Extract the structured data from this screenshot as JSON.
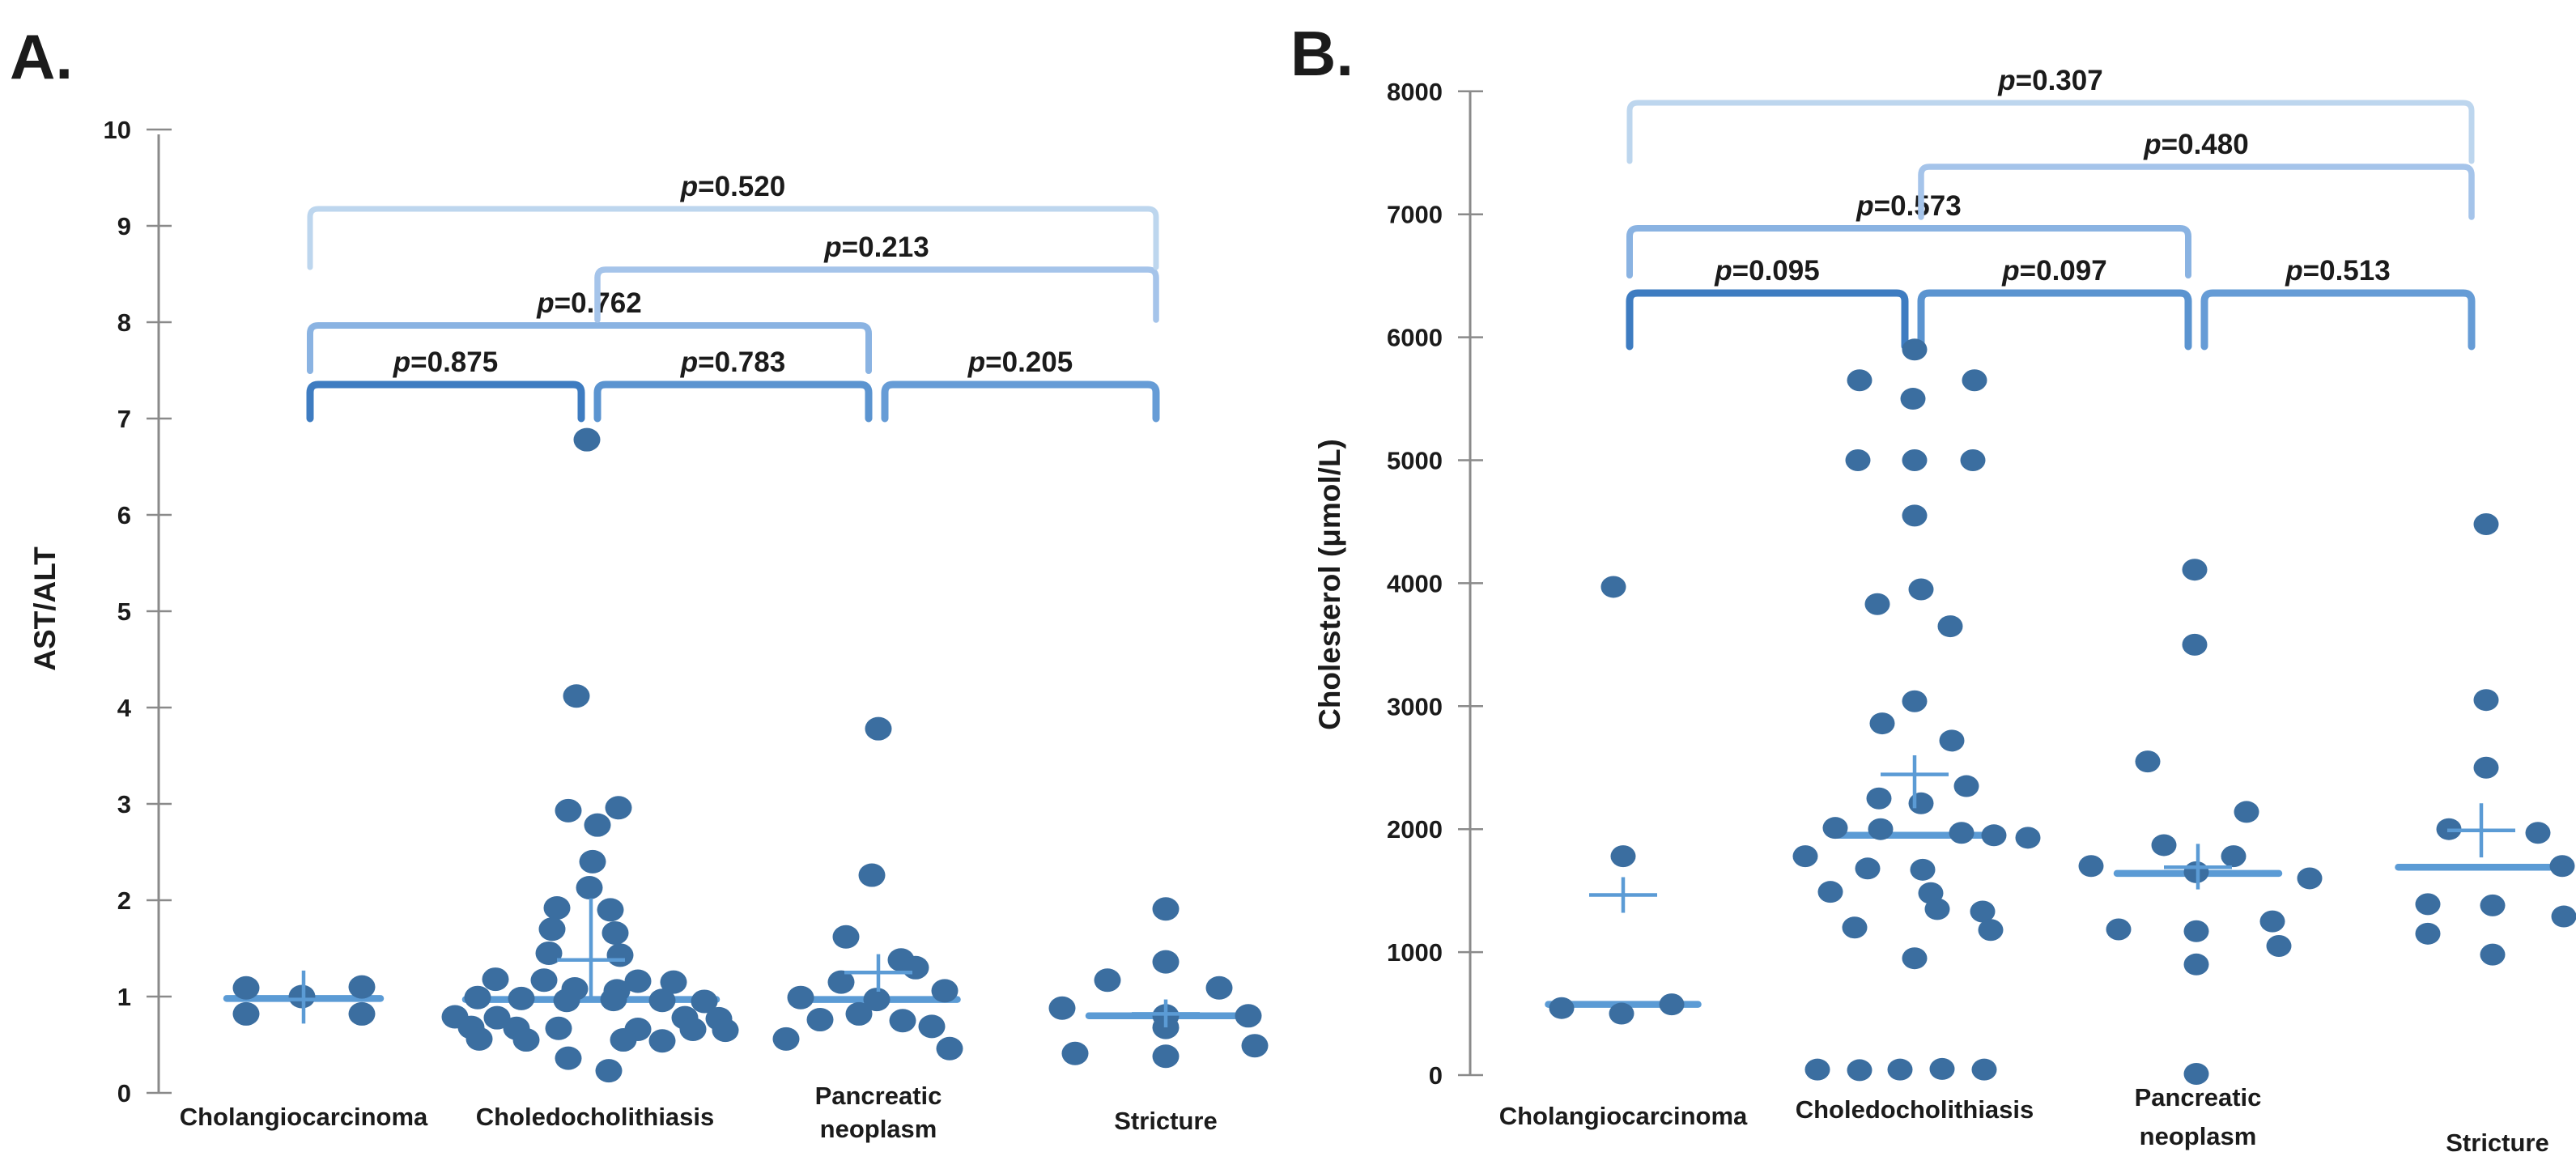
{
  "figure_title": "",
  "colors": {
    "dot": "#3b6ea0",
    "stat_line": "#5b9bd5",
    "axis": "#8a8a8a",
    "text": "#1b1b1b"
  },
  "chart_data": [
    {
      "id": "A",
      "type": "scatter",
      "panel_label": "A.",
      "ylabel": "AST/ALT",
      "ylim": [
        0,
        10
      ],
      "yticks": [
        0,
        1,
        2,
        3,
        4,
        5,
        6,
        7,
        8,
        9,
        10
      ],
      "grid": false,
      "legend": "none",
      "categories": [
        {
          "lines": [
            "Cholangiocarcinoma"
          ]
        },
        {
          "lines": [
            "Choledocholithiasis"
          ]
        },
        {
          "lines": [
            "Pancreatic",
            "neoplasm"
          ]
        },
        {
          "lines": [
            "Stricture"
          ]
        }
      ],
      "groups": [
        {
          "category": "Cholangiocarcinoma",
          "median": 0.98,
          "mean": 0.97,
          "mean_range": [
            0.72,
            1.27
          ],
          "median_width": 190,
          "points": [
            [
              -71,
              1.09
            ],
            [
              -71,
              0.82
            ],
            [
              -2,
              1.0
            ],
            [
              72,
              1.1
            ],
            [
              72,
              0.82
            ]
          ]
        },
        {
          "category": "Choledocholithiasis",
          "median": 0.97,
          "mean": 1.38,
          "mean_range": [
            1.0,
            2.02
          ],
          "median_width": 310,
          "points": [
            [
              -5,
              6.78
            ],
            [
              -18,
              4.12
            ],
            [
              -28,
              2.93
            ],
            [
              34,
              2.96
            ],
            [
              8,
              2.78
            ],
            [
              2,
              2.4
            ],
            [
              -2,
              2.13
            ],
            [
              -42,
              1.92
            ],
            [
              24,
              1.9
            ],
            [
              -48,
              1.7
            ],
            [
              30,
              1.66
            ],
            [
              -52,
              1.45
            ],
            [
              36,
              1.43
            ],
            [
              -118,
              1.18
            ],
            [
              -58,
              1.17
            ],
            [
              58,
              1.16
            ],
            [
              102,
              1.15
            ],
            [
              -20,
              1.08
            ],
            [
              32,
              1.06
            ],
            [
              -140,
              0.99
            ],
            [
              -86,
              0.98
            ],
            [
              -30,
              0.96
            ],
            [
              28,
              0.97
            ],
            [
              88,
              0.96
            ],
            [
              140,
              0.95
            ],
            [
              -168,
              0.79
            ],
            [
              -116,
              0.78
            ],
            [
              116,
              0.78
            ],
            [
              158,
              0.77
            ],
            [
              -148,
              0.68
            ],
            [
              -92,
              0.67
            ],
            [
              -40,
              0.67
            ],
            [
              58,
              0.66
            ],
            [
              126,
              0.66
            ],
            [
              166,
              0.65
            ],
            [
              -138,
              0.56
            ],
            [
              -80,
              0.55
            ],
            [
              40,
              0.55
            ],
            [
              88,
              0.54
            ],
            [
              -28,
              0.36
            ],
            [
              22,
              0.23
            ]
          ]
        },
        {
          "category": "Pancreatic neoplasm",
          "median": 0.97,
          "mean": 1.25,
          "mean_range": [
            1.05,
            1.44
          ],
          "median_width": 195,
          "points": [
            [
              0,
              3.78
            ],
            [
              -8,
              2.26
            ],
            [
              -40,
              1.62
            ],
            [
              28,
              1.38
            ],
            [
              46,
              1.3
            ],
            [
              -46,
              1.15
            ],
            [
              82,
              1.06
            ],
            [
              -96,
              0.99
            ],
            [
              -2,
              0.97
            ],
            [
              -24,
              0.82
            ],
            [
              -72,
              0.76
            ],
            [
              30,
              0.75
            ],
            [
              66,
              0.69
            ],
            [
              -114,
              0.56
            ],
            [
              88,
              0.46
            ]
          ]
        },
        {
          "category": "Stricture",
          "median": 0.8,
          "mean": 0.82,
          "mean_range": [
            0.68,
            0.97
          ],
          "median_width": 190,
          "points": [
            [
              0,
              1.91
            ],
            [
              0,
              1.36
            ],
            [
              -72,
              1.17
            ],
            [
              66,
              1.09
            ],
            [
              -128,
              0.88
            ],
            [
              0,
              0.8
            ],
            [
              102,
              0.8
            ],
            [
              0,
              0.68
            ],
            [
              110,
              0.49
            ],
            [
              -112,
              0.41
            ],
            [
              0,
              0.38
            ]
          ]
        }
      ],
      "comparisons": [
        {
          "from": 0,
          "to": 1,
          "p_text": "p=0.875",
          "p_value": "0.875",
          "level": 0,
          "color": "#3e7cc1"
        },
        {
          "from": 1,
          "to": 2,
          "p_text": "p=0.783",
          "p_value": "0.783",
          "level": 0,
          "color": "#5b94d0"
        },
        {
          "from": 2,
          "to": 3,
          "p_text": "p=0.205",
          "p_value": "0.205",
          "level": 0,
          "color": "#669cd6"
        },
        {
          "from": 0,
          "to": 2,
          "p_text": "p=0.762",
          "p_value": "0.762",
          "level": 1,
          "color": "#8ab3e2"
        },
        {
          "from": 1,
          "to": 3,
          "p_text": "p=0.213",
          "p_value": "0.213",
          "level": 2,
          "color": "#a5c4ea"
        },
        {
          "from": 0,
          "to": 3,
          "p_text": "p=0.520",
          "p_value": "0.520",
          "level": 3,
          "color": "#bdd6ee"
        }
      ]
    },
    {
      "id": "B",
      "type": "scatter",
      "panel_label": "B.",
      "ylabel": "Cholesterol (μmol/L)",
      "ylim": [
        0,
        8000
      ],
      "yticks": [
        0,
        1000,
        2000,
        3000,
        4000,
        5000,
        6000,
        7000,
        8000
      ],
      "grid": false,
      "legend": "none",
      "categories": [
        {
          "lines": [
            "Cholangiocarcinoma"
          ]
        },
        {
          "lines": [
            "Choledocholithiasis"
          ]
        },
        {
          "lines": [
            "Pancreatic",
            "neoplasm"
          ]
        },
        {
          "lines": [
            "Stricture"
          ]
        }
      ],
      "groups": [
        {
          "category": "Cholangiocarcinoma",
          "median": 575,
          "mean": 1465,
          "mean_range": [
            1320,
            1610
          ],
          "median_width": 185,
          "points": [
            [
              -12,
              3970
            ],
            [
              0,
              1780
            ],
            [
              -76,
              545
            ],
            [
              -2,
              500
            ],
            [
              60,
              575
            ]
          ]
        },
        {
          "category": "Choledocholithiasis",
          "median": 1950,
          "mean": 2445,
          "mean_range": [
            2170,
            2600
          ],
          "median_width": 190,
          "points": [
            [
              0,
              5900
            ],
            [
              -68,
              5650
            ],
            [
              74,
              5650
            ],
            [
              -2,
              5500
            ],
            [
              -70,
              5000
            ],
            [
              0,
              5000
            ],
            [
              72,
              5000
            ],
            [
              0,
              4550
            ],
            [
              8,
              3950
            ],
            [
              -46,
              3830
            ],
            [
              44,
              3650
            ],
            [
              0,
              3040
            ],
            [
              -40,
              2860
            ],
            [
              46,
              2720
            ],
            [
              64,
              2350
            ],
            [
              -44,
              2250
            ],
            [
              8,
              2210
            ],
            [
              -98,
              2010
            ],
            [
              -42,
              2000
            ],
            [
              58,
              1970
            ],
            [
              98,
              1950
            ],
            [
              140,
              1930
            ],
            [
              -135,
              1780
            ],
            [
              -58,
              1680
            ],
            [
              10,
              1670
            ],
            [
              -104,
              1490
            ],
            [
              20,
              1480
            ],
            [
              28,
              1350
            ],
            [
              84,
              1330
            ],
            [
              -74,
              1200
            ],
            [
              94,
              1180
            ],
            [
              0,
              950
            ],
            [
              -120,
              45
            ],
            [
              -68,
              40
            ],
            [
              -18,
              45
            ],
            [
              34,
              50
            ],
            [
              86,
              45
            ]
          ]
        },
        {
          "category": "Pancreatic neoplasm",
          "median": 1640,
          "mean": 1690,
          "mean_range": [
            1510,
            1880
          ],
          "median_width": 200,
          "points": [
            [
              -4,
              4110
            ],
            [
              -4,
              3500
            ],
            [
              -62,
              2550
            ],
            [
              60,
              2140
            ],
            [
              -42,
              1870
            ],
            [
              44,
              1780
            ],
            [
              -132,
              1700
            ],
            [
              -2,
              1650
            ],
            [
              138,
              1600
            ],
            [
              92,
              1250
            ],
            [
              -98,
              1185
            ],
            [
              -2,
              1170
            ],
            [
              100,
              1050
            ],
            [
              -2,
              900
            ],
            [
              -2,
              10
            ]
          ]
        },
        {
          "category": "Stricture",
          "median": 1690,
          "mean": 1990,
          "mean_range": [
            1770,
            2210
          ],
          "median_width": 205,
          "points": [
            [
              6,
              4480
            ],
            [
              6,
              3050
            ],
            [
              6,
              2500
            ],
            [
              -40,
              2000
            ],
            [
              70,
              1970
            ],
            [
              100,
              1700
            ],
            [
              -66,
              1390
            ],
            [
              14,
              1380
            ],
            [
              102,
              1290
            ],
            [
              -66,
              1150
            ],
            [
              14,
              980
            ]
          ]
        }
      ],
      "comparisons": [
        {
          "from": 0,
          "to": 1,
          "p_text": "p=0.095",
          "p_value": "0.095",
          "level": 0,
          "color": "#3e7cc1"
        },
        {
          "from": 1,
          "to": 2,
          "p_text": "p=0.097",
          "p_value": "0.097",
          "level": 0,
          "color": "#5b94d0"
        },
        {
          "from": 2,
          "to": 3,
          "p_text": "p=0.513",
          "p_value": "0.513",
          "level": 0,
          "color": "#669cd6"
        },
        {
          "from": 0,
          "to": 2,
          "p_text": "p=0.573",
          "p_value": "0.573",
          "level": 1,
          "color": "#8ab3e2"
        },
        {
          "from": 1,
          "to": 3,
          "p_text": "p=0.480",
          "p_value": "0.480",
          "level": 2,
          "color": "#a5c4ea"
        },
        {
          "from": 0,
          "to": 3,
          "p_text": "p=0.307",
          "p_value": "0.307",
          "level": 3,
          "color": "#bdd6ee"
        }
      ]
    }
  ]
}
